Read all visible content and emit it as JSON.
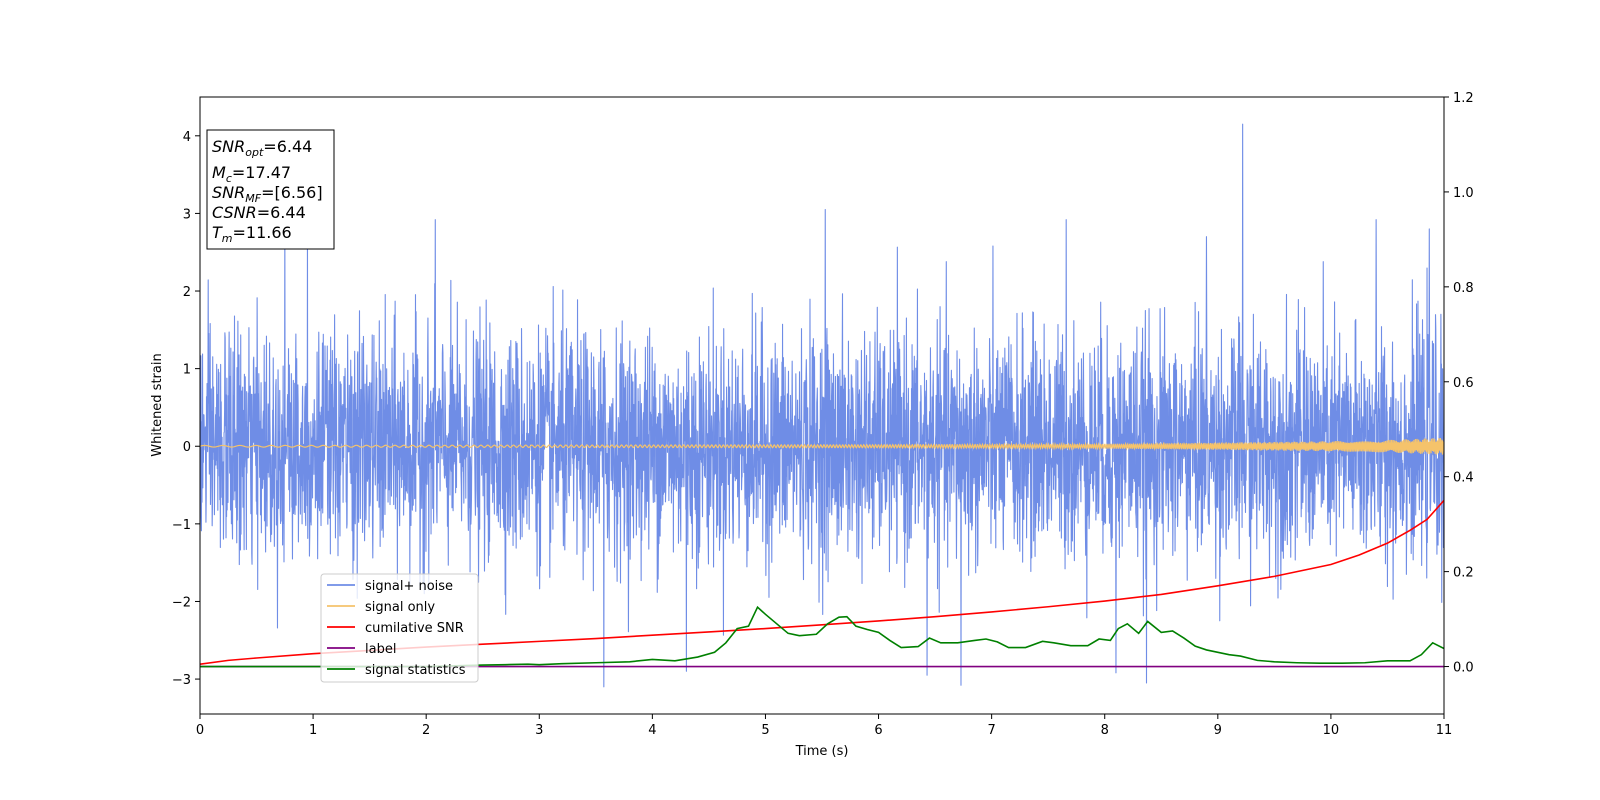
{
  "chart_data": {
    "type": "line",
    "xlabel": "Time (s)",
    "ylabel": "Whitened strain",
    "xlim": [
      0,
      11
    ],
    "ylim_left": [
      -3.45,
      4.5
    ],
    "ylim_right": [
      -0.1,
      1.2
    ],
    "xticks": [
      0,
      1,
      2,
      3,
      4,
      5,
      6,
      7,
      8,
      9,
      10,
      11
    ],
    "yticks_left": [
      -3,
      -2,
      -1,
      0,
      1,
      2,
      3,
      4
    ],
    "yticks_right": [
      0.0,
      0.2,
      0.4,
      0.6,
      0.8,
      1.0,
      1.2
    ],
    "grid": false,
    "legend_position": "lower-left",
    "annotation": {
      "snr_opt": {
        "base": "SNR",
        "sub": "opt",
        "value": "=6.44"
      },
      "mc": {
        "base": "M",
        "sub": "c",
        "value": "=17.47"
      },
      "snr_mf": {
        "base": "SNR",
        "sub": "MF",
        "value": "=[6.56]"
      },
      "csnr": {
        "base": "CSNR",
        "sub": "",
        "value": "=6.44"
      },
      "tm": {
        "base": "T",
        "sub": "m",
        "value": "=11.66"
      }
    },
    "series": [
      {
        "name": "signal+ noise",
        "axis": "left",
        "color": "#6f8de6",
        "description_values": {
          "mean": 0,
          "std": 0.72,
          "clip_min": -3.1,
          "clip_max": 4.15,
          "peaks": [
            [
              0.75,
              2.85
            ],
            [
              0.95,
              2.8
            ],
            [
              2.08,
              2.92
            ],
            [
              5.53,
              3.05
            ],
            [
              6.43,
              2.8
            ],
            [
              7.66,
              2.92
            ],
            [
              8.9,
              2.7
            ],
            [
              9.22,
              4.15
            ],
            [
              10.4,
              2.92
            ],
            [
              10.87,
              2.8
            ],
            [
              3.57,
              -3.1
            ],
            [
              6.73,
              -3.08
            ],
            [
              8.37,
              -3.05
            ],
            [
              6.43,
              -2.95
            ],
            [
              4.3,
              -2.9
            ],
            [
              8.1,
              -2.92
            ]
          ]
        }
      },
      {
        "name": "signal only",
        "axis": "left",
        "color": "#f5c36b",
        "envelope": [
          [
            0,
            0.01
          ],
          [
            6,
            0.02
          ],
          [
            8,
            0.03
          ],
          [
            9,
            0.045
          ],
          [
            10,
            0.065
          ],
          [
            10.5,
            0.08
          ],
          [
            11,
            0.11
          ]
        ]
      },
      {
        "name": "cumilative SNR",
        "axis": "right",
        "color": "#ff0000",
        "x": [
          0,
          0.25,
          0.5,
          1,
          1.5,
          2,
          2.5,
          3,
          3.5,
          4,
          4.5,
          5,
          5.5,
          6,
          6.5,
          7,
          7.5,
          8,
          8.5,
          9,
          9.5,
          10,
          10.25,
          10.5,
          10.7,
          10.85,
          11
        ],
        "values": [
          0.005,
          0.013,
          0.018,
          0.027,
          0.034,
          0.041,
          0.047,
          0.053,
          0.059,
          0.066,
          0.073,
          0.08,
          0.088,
          0.096,
          0.105,
          0.115,
          0.126,
          0.138,
          0.152,
          0.17,
          0.19,
          0.215,
          0.235,
          0.26,
          0.287,
          0.31,
          0.35
        ]
      },
      {
        "name": "label",
        "axis": "right",
        "color": "#800080",
        "x": [
          0,
          11
        ],
        "values": [
          0,
          0
        ]
      },
      {
        "name": "signal statistics",
        "axis": "right",
        "color": "#008000",
        "x": [
          0,
          0.5,
          1,
          1.5,
          2,
          2.5,
          2.7,
          2.9,
          3.0,
          3.2,
          3.5,
          3.8,
          4.0,
          4.2,
          4.4,
          4.55,
          4.65,
          4.75,
          4.85,
          4.93,
          5.0,
          5.1,
          5.2,
          5.3,
          5.45,
          5.55,
          5.65,
          5.72,
          5.8,
          5.9,
          6.0,
          6.1,
          6.2,
          6.35,
          6.45,
          6.55,
          6.7,
          6.85,
          6.95,
          7.05,
          7.15,
          7.3,
          7.45,
          7.55,
          7.7,
          7.85,
          7.95,
          8.05,
          8.12,
          8.2,
          8.3,
          8.38,
          8.5,
          8.6,
          8.7,
          8.8,
          8.9,
          9.0,
          9.1,
          9.2,
          9.35,
          9.5,
          9.7,
          9.9,
          10.1,
          10.3,
          10.5,
          10.7,
          10.8,
          10.9,
          11.0
        ],
        "values": [
          0,
          0,
          0,
          0,
          0,
          0.003,
          0.004,
          0.005,
          0.004,
          0.006,
          0.008,
          0.01,
          0.015,
          0.012,
          0.02,
          0.03,
          0.05,
          0.08,
          0.085,
          0.125,
          0.11,
          0.09,
          0.07,
          0.065,
          0.068,
          0.09,
          0.104,
          0.105,
          0.085,
          0.078,
          0.072,
          0.055,
          0.04,
          0.042,
          0.06,
          0.05,
          0.05,
          0.055,
          0.058,
          0.052,
          0.04,
          0.04,
          0.053,
          0.05,
          0.044,
          0.044,
          0.058,
          0.055,
          0.08,
          0.09,
          0.07,
          0.095,
          0.072,
          0.075,
          0.06,
          0.043,
          0.035,
          0.03,
          0.025,
          0.022,
          0.013,
          0.01,
          0.008,
          0.007,
          0.007,
          0.008,
          0.012,
          0.012,
          0.025,
          0.05,
          0.038
        ]
      }
    ]
  }
}
